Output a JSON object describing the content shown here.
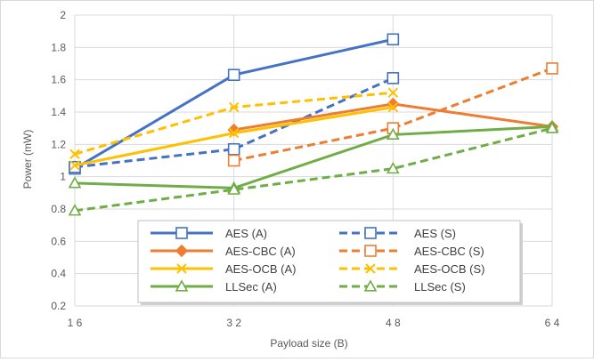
{
  "chart_data": {
    "type": "line",
    "title": "",
    "xlabel": "Payload size (B)",
    "ylabel": "Power (mW)",
    "x_tick_labels": [
      "1 6",
      "3 2",
      "4 8",
      "6 4"
    ],
    "x": [
      16,
      32,
      48,
      64
    ],
    "y_ticks": [
      "0.2",
      "0.4",
      "0.6",
      "0.8",
      "1",
      "1.2",
      "1.4",
      "1.6",
      "1.8",
      "2"
    ],
    "ylim": [
      0.2,
      2
    ],
    "grid": true,
    "legend_position": "bottom-center",
    "series": [
      {
        "name": "AES (A)",
        "color": "#4472c4",
        "dash": false,
        "marker": "square",
        "values": [
          1.05,
          1.63,
          1.85,
          null
        ]
      },
      {
        "name": "AES (S)",
        "color": "#4472c4",
        "dash": true,
        "marker": "square",
        "values": [
          1.06,
          1.17,
          1.61,
          null
        ]
      },
      {
        "name": "AES-CBC (A)",
        "color": "#ed7d31",
        "dash": false,
        "marker": "diamond",
        "values": [
          null,
          1.29,
          1.45,
          1.31
        ]
      },
      {
        "name": "AES-CBC (S)",
        "color": "#ed7d31",
        "dash": true,
        "marker": "square",
        "values": [
          null,
          1.1,
          1.3,
          1.67
        ]
      },
      {
        "name": "AES-OCB (A)",
        "color": "#ffc000",
        "dash": false,
        "marker": "x",
        "values": [
          1.07,
          1.27,
          1.43,
          null
        ]
      },
      {
        "name": "AES-OCB (S)",
        "color": "#ffc000",
        "dash": true,
        "marker": "x",
        "values": [
          1.14,
          1.43,
          1.52,
          null
        ]
      },
      {
        "name": "LLSec (A)",
        "color": "#70ad47",
        "dash": false,
        "marker": "triangle",
        "values": [
          0.96,
          0.93,
          1.26,
          1.31
        ]
      },
      {
        "name": "LLSec (S)",
        "color": "#70ad47",
        "dash": true,
        "marker": "triangle",
        "values": [
          0.79,
          0.92,
          1.05,
          1.3
        ]
      }
    ]
  }
}
